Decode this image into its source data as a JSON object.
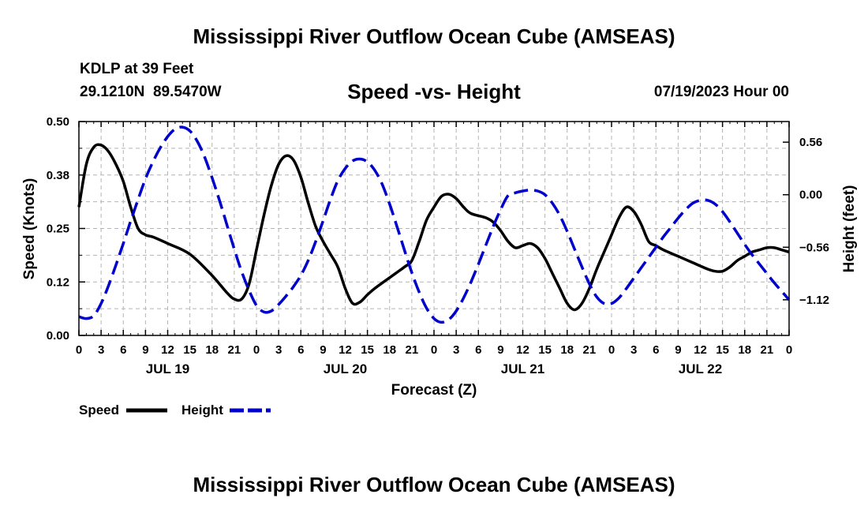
{
  "page": {
    "title": "Mississippi River Outflow Ocean Cube (AMSEAS)",
    "footer_title": "Mississippi River Outflow Ocean Cube (AMSEAS)",
    "station": "KDLP at 39 Feet",
    "coords": "29.1210N  89.5470W",
    "subtitle": "Speed -vs- Height",
    "datetime": "07/19/2023 Hour 00"
  },
  "legend": {
    "speed_label": "Speed",
    "height_label": "Height"
  },
  "colors": {
    "speed": "#000000",
    "height": "#0000cc",
    "grid": "#b4b4b4"
  },
  "chart_data": {
    "type": "line",
    "xlabel": "Forecast (Z)",
    "ylabel_left": "Speed (Knots)",
    "ylabel_right": "Height (feet)",
    "x_unit": "hours from 07/19/2023 00Z",
    "xlim": [
      0,
      96
    ],
    "ylim_left": [
      0,
      0.5
    ],
    "ylim_right": [
      -1.5,
      0.78
    ],
    "left_ticks": [
      {
        "value": 0.0,
        "label": "0.00"
      },
      {
        "value": 0.125,
        "label": "0.12"
      },
      {
        "value": 0.25,
        "label": "0.25"
      },
      {
        "value": 0.375,
        "label": "0.38"
      },
      {
        "value": 0.5,
        "label": "0.50"
      }
    ],
    "right_ticks": [
      {
        "value": 0.56,
        "label": "0.56"
      },
      {
        "value": 0.0,
        "label": "0.00"
      },
      {
        "value": -0.56,
        "label": "−0.56"
      },
      {
        "value": -1.12,
        "label": "−1.12"
      }
    ],
    "x_tick_labels": [
      "0",
      "3",
      "6",
      "9",
      "12",
      "15",
      "18",
      "21",
      "0",
      "3",
      "6",
      "9",
      "12",
      "15",
      "18",
      "21",
      "0",
      "3",
      "6",
      "9",
      "12",
      "15",
      "18",
      "21",
      "0",
      "3",
      "6",
      "9",
      "12",
      "15",
      "18",
      "21",
      "0"
    ],
    "day_labels": [
      {
        "label": "JUL 19",
        "x": 12
      },
      {
        "label": "JUL 20",
        "x": 36
      },
      {
        "label": "JUL 21",
        "x": 60
      },
      {
        "label": "JUL 22",
        "x": 84
      }
    ],
    "series": [
      {
        "name": "Speed",
        "axis": "left",
        "style": "solid",
        "points": [
          [
            0,
            0.3
          ],
          [
            1,
            0.4
          ],
          [
            2,
            0.44
          ],
          [
            3,
            0.445
          ],
          [
            4,
            0.43
          ],
          [
            5,
            0.4
          ],
          [
            6,
            0.36
          ],
          [
            7,
            0.3
          ],
          [
            8,
            0.25
          ],
          [
            9,
            0.235
          ],
          [
            10,
            0.23
          ],
          [
            12,
            0.215
          ],
          [
            15,
            0.19
          ],
          [
            18,
            0.14
          ],
          [
            20,
            0.1
          ],
          [
            21,
            0.085
          ],
          [
            22,
            0.085
          ],
          [
            23,
            0.12
          ],
          [
            24,
            0.2
          ],
          [
            25,
            0.28
          ],
          [
            26,
            0.35
          ],
          [
            27,
            0.4
          ],
          [
            28,
            0.42
          ],
          [
            29,
            0.41
          ],
          [
            30,
            0.37
          ],
          [
            31,
            0.31
          ],
          [
            32,
            0.255
          ],
          [
            33,
            0.22
          ],
          [
            34,
            0.19
          ],
          [
            35,
            0.16
          ],
          [
            36,
            0.11
          ],
          [
            37,
            0.075
          ],
          [
            38,
            0.078
          ],
          [
            39,
            0.095
          ],
          [
            40,
            0.11
          ],
          [
            42,
            0.135
          ],
          [
            44,
            0.16
          ],
          [
            45,
            0.175
          ],
          [
            46,
            0.22
          ],
          [
            47,
            0.27
          ],
          [
            48,
            0.3
          ],
          [
            49,
            0.325
          ],
          [
            50,
            0.33
          ],
          [
            51,
            0.32
          ],
          [
            52,
            0.3
          ],
          [
            53,
            0.285
          ],
          [
            55,
            0.275
          ],
          [
            56,
            0.265
          ],
          [
            57,
            0.245
          ],
          [
            58,
            0.22
          ],
          [
            59,
            0.205
          ],
          [
            60,
            0.21
          ],
          [
            61,
            0.215
          ],
          [
            62,
            0.205
          ],
          [
            63,
            0.18
          ],
          [
            64,
            0.145
          ],
          [
            65,
            0.11
          ],
          [
            66,
            0.075
          ],
          [
            67,
            0.06
          ],
          [
            68,
            0.075
          ],
          [
            69,
            0.11
          ],
          [
            70,
            0.155
          ],
          [
            71,
            0.195
          ],
          [
            72,
            0.235
          ],
          [
            73,
            0.275
          ],
          [
            74,
            0.3
          ],
          [
            75,
            0.29
          ],
          [
            76,
            0.26
          ],
          [
            77,
            0.22
          ],
          [
            78,
            0.21
          ],
          [
            79,
            0.2
          ],
          [
            81,
            0.185
          ],
          [
            83,
            0.17
          ],
          [
            85,
            0.155
          ],
          [
            86,
            0.15
          ],
          [
            87,
            0.15
          ],
          [
            88,
            0.16
          ],
          [
            89,
            0.175
          ],
          [
            90,
            0.185
          ],
          [
            91,
            0.195
          ],
          [
            92,
            0.2
          ],
          [
            93,
            0.205
          ],
          [
            94,
            0.205
          ],
          [
            95,
            0.2
          ],
          [
            96,
            0.195
          ]
        ]
      },
      {
        "name": "Height",
        "axis": "right",
        "style": "dashed",
        "points": [
          [
            0,
            -1.3
          ],
          [
            1,
            -1.32
          ],
          [
            2,
            -1.29
          ],
          [
            3,
            -1.16
          ],
          [
            4,
            -0.97
          ],
          [
            5,
            -0.75
          ],
          [
            6,
            -0.52
          ],
          [
            7,
            -0.28
          ],
          [
            8,
            -0.05
          ],
          [
            9,
            0.17
          ],
          [
            10,
            0.35
          ],
          [
            11,
            0.5
          ],
          [
            12,
            0.62
          ],
          [
            13,
            0.7
          ],
          [
            14,
            0.72
          ],
          [
            15,
            0.68
          ],
          [
            16,
            0.57
          ],
          [
            17,
            0.4
          ],
          [
            18,
            0.18
          ],
          [
            19,
            -0.06
          ],
          [
            20,
            -0.32
          ],
          [
            21,
            -0.58
          ],
          [
            22,
            -0.82
          ],
          [
            23,
            -1.02
          ],
          [
            24,
            -1.18
          ],
          [
            25,
            -1.25
          ],
          [
            26,
            -1.24
          ],
          [
            27,
            -1.17
          ],
          [
            28,
            -1.08
          ],
          [
            29,
            -0.98
          ],
          [
            30,
            -0.86
          ],
          [
            31,
            -0.7
          ],
          [
            32,
            -0.5
          ],
          [
            33,
            -0.28
          ],
          [
            34,
            -0.05
          ],
          [
            35,
            0.15
          ],
          [
            36,
            0.28
          ],
          [
            37,
            0.36
          ],
          [
            38,
            0.38
          ],
          [
            39,
            0.35
          ],
          [
            40,
            0.26
          ],
          [
            41,
            0.11
          ],
          [
            42,
            -0.1
          ],
          [
            43,
            -0.34
          ],
          [
            44,
            -0.59
          ],
          [
            45,
            -0.83
          ],
          [
            46,
            -1.04
          ],
          [
            47,
            -1.21
          ],
          [
            48,
            -1.32
          ],
          [
            49,
            -1.36
          ],
          [
            50,
            -1.33
          ],
          [
            51,
            -1.24
          ],
          [
            52,
            -1.1
          ],
          [
            53,
            -0.93
          ],
          [
            54,
            -0.74
          ],
          [
            55,
            -0.54
          ],
          [
            56,
            -0.34
          ],
          [
            57,
            -0.16
          ],
          [
            58,
            -0.01
          ],
          [
            59,
            0.02
          ],
          [
            60,
            0.04
          ],
          [
            61,
            0.05
          ],
          [
            62,
            0.04
          ],
          [
            63,
            0.0
          ],
          [
            64,
            -0.09
          ],
          [
            65,
            -0.22
          ],
          [
            66,
            -0.39
          ],
          [
            67,
            -0.58
          ],
          [
            68,
            -0.77
          ],
          [
            69,
            -0.95
          ],
          [
            70,
            -1.09
          ],
          [
            71,
            -1.16
          ],
          [
            72,
            -1.16
          ],
          [
            73,
            -1.1
          ],
          [
            74,
            -1.0
          ],
          [
            75,
            -0.89
          ],
          [
            76,
            -0.78
          ],
          [
            77,
            -0.67
          ],
          [
            78,
            -0.56
          ],
          [
            79,
            -0.45
          ],
          [
            80,
            -0.35
          ],
          [
            81,
            -0.25
          ],
          [
            82,
            -0.16
          ],
          [
            83,
            -0.09
          ],
          [
            84,
            -0.06
          ],
          [
            85,
            -0.06
          ],
          [
            86,
            -0.1
          ],
          [
            87,
            -0.18
          ],
          [
            88,
            -0.29
          ],
          [
            89,
            -0.41
          ],
          [
            90,
            -0.53
          ],
          [
            91,
            -0.64
          ],
          [
            92,
            -0.74
          ],
          [
            93,
            -0.84
          ],
          [
            94,
            -0.94
          ],
          [
            95,
            -1.03
          ],
          [
            96,
            -1.12
          ]
        ]
      }
    ]
  }
}
